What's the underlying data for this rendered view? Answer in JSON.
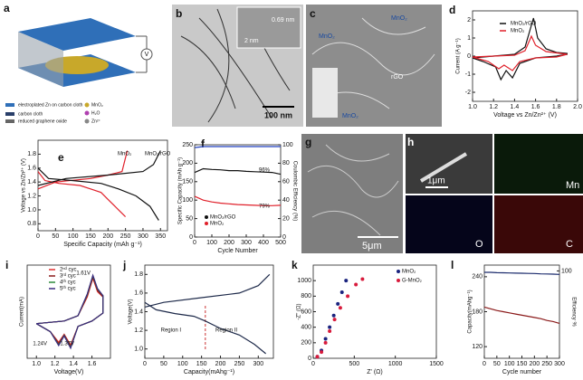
{
  "figure": {
    "a": {
      "label": "a",
      "side_label": "V",
      "legend": [
        "electroplated Zn on carbon cloth",
        "carbon cloth",
        "reduced graphene oxide",
        "MnO₂",
        "H₂O",
        "Zn²⁺"
      ]
    },
    "b": {
      "label": "b",
      "annotations": [
        "0.69 nm",
        "2 nm",
        "100 nm"
      ]
    },
    "c": {
      "label": "c",
      "annotations": [
        "MnO₂",
        "MnO₂",
        "rGO",
        "MnO₂"
      ]
    },
    "g": {
      "label": "g",
      "scale": "5μm"
    },
    "h": {
      "label": "h",
      "scale": "1μm",
      "maps": [
        "Mn",
        "O",
        "C"
      ]
    }
  },
  "chart_data": [
    {
      "type": "line",
      "label": "d",
      "xlabel": "Voltage vs Zn/Zn²⁺ (V)",
      "ylabel": "Current (A g⁻¹)",
      "xlim": [
        1.0,
        2.0
      ],
      "ylim": [
        -2.5,
        2.5
      ],
      "xticks": [
        {
          "value": 1,
          "label": "1.0"
        },
        1.2,
        1.4,
        1.6,
        1.8,
        {
          "value": 2,
          "label": "2.0"
        }
      ],
      "yticks": [
        -2,
        -1,
        0,
        1,
        2
      ],
      "series": [
        {
          "name": "MnO₂/rGO",
          "color": "#111111",
          "x": [
            1.0,
            1.4,
            1.5,
            1.55,
            1.58,
            1.62,
            1.7,
            1.8,
            1.9,
            1.9,
            1.8,
            1.6,
            1.45,
            1.38,
            1.32,
            1.27,
            1.22,
            1.1,
            1.0
          ],
          "values": [
            -0.1,
            0.1,
            0.5,
            1.5,
            2.1,
            1.0,
            0.4,
            0.2,
            0.15,
            0.1,
            0.0,
            -0.1,
            -0.4,
            -1.2,
            -0.8,
            -1.3,
            -0.6,
            -0.3,
            -0.1
          ]
        },
        {
          "name": "MnO₂",
          "color": "#e0202a",
          "x": [
            1.0,
            1.4,
            1.5,
            1.56,
            1.6,
            1.7,
            1.9,
            1.8,
            1.6,
            1.45,
            1.38,
            1.3,
            1.25,
            1.15,
            1.0
          ],
          "values": [
            -0.05,
            0.05,
            0.3,
            1.1,
            0.6,
            0.25,
            0.1,
            -0.05,
            -0.1,
            -0.3,
            -0.8,
            -0.5,
            -0.7,
            -0.3,
            -0.05
          ]
        }
      ]
    },
    {
      "type": "line",
      "label": "e",
      "xlabel": "Specific Capacity (mAh g⁻¹)",
      "ylabel": "Voltage vs Zn/Zn²⁺ (V)",
      "xlim": [
        0,
        370
      ],
      "ylim": [
        0.7,
        2.0
      ],
      "xticks": [
        0,
        50,
        100,
        150,
        200,
        250,
        300,
        350
      ],
      "yticks": [
        0.8,
        {
          "value": 1,
          "label": "1.0"
        },
        1.2,
        1.4,
        1.6,
        1.8
      ],
      "series": [
        {
          "name": "MnO₂",
          "color": "#e0202a",
          "x": [
            0,
            20,
            60,
            120,
            150,
            180,
            200,
            230,
            250,
            null,
            0,
            50,
            150,
            200,
            240,
            255
          ],
          "values": [
            1.55,
            1.42,
            1.38,
            1.35,
            1.3,
            1.25,
            1.15,
            1.0,
            0.9,
            null,
            1.3,
            1.4,
            1.45,
            1.5,
            1.55,
            1.85
          ]
        },
        {
          "name": "MnO₂/rGO",
          "color": "#111111",
          "x": [
            0,
            30,
            100,
            180,
            230,
            280,
            320,
            345,
            null,
            0,
            80,
            200,
            300,
            330,
            350
          ],
          "values": [
            1.6,
            1.45,
            1.42,
            1.38,
            1.3,
            1.2,
            1.05,
            0.85,
            null,
            1.35,
            1.45,
            1.5,
            1.55,
            1.65,
            1.85
          ]
        }
      ]
    },
    {
      "type": "line",
      "label": "f",
      "xlabel": "Cycle Number",
      "ylabel": "Specific Capacity (mAh g⁻¹)",
      "y2label": "Coulombic Efficiency (%)",
      "xlim": [
        0,
        500
      ],
      "ylim": [
        0,
        250
      ],
      "y2lim": [
        0,
        100
      ],
      "xticks": [
        0,
        100,
        200,
        300,
        400,
        500
      ],
      "yticks": [
        0,
        50,
        100,
        150,
        200,
        250
      ],
      "y2ticks": [
        0,
        20,
        40,
        60,
        80,
        100
      ],
      "annotations": [
        "96%",
        "79%"
      ],
      "series": [
        {
          "name": "MnO₂/rGO",
          "color": "#111111",
          "x": [
            1,
            50,
            100,
            150,
            200,
            250,
            300,
            350,
            400,
            450,
            500
          ],
          "values": [
            175,
            185,
            183,
            182,
            180,
            180,
            178,
            177,
            176,
            175,
            170
          ]
        },
        {
          "name": "MnO₂",
          "color": "#e0202a",
          "x": [
            1,
            50,
            100,
            150,
            200,
            250,
            300,
            350,
            400,
            450,
            500
          ],
          "values": [
            110,
            100,
            95,
            92,
            90,
            88,
            87,
            86,
            85,
            85,
            86
          ]
        },
        {
          "color": "#2040c0",
          "axis": "y2",
          "x": [
            1,
            50,
            100,
            150,
            200,
            250,
            300,
            350,
            400,
            450,
            500
          ],
          "values": [
            97,
            98,
            98,
            98,
            98,
            98,
            98,
            98,
            98,
            98,
            98
          ]
        }
      ]
    },
    {
      "type": "line",
      "label": "i",
      "xlabel": "Voltage(V)",
      "ylabel": "Current(mA)",
      "xlim": [
        0.9,
        1.8
      ],
      "ylim": [
        -1.5,
        2.0
      ],
      "xticks": [
        {
          "value": 1,
          "label": "1.0"
        },
        1.2,
        1.4,
        1.6
      ],
      "annotations": [
        "1.61V",
        "1.24V",
        "1.37V"
      ],
      "series": [
        {
          "name": "2ⁿᵈ cyc",
          "color": "#e03030",
          "x": [
            1.0,
            1.3,
            1.45,
            1.55,
            1.61,
            1.66,
            1.72,
            1.72,
            1.6,
            1.45,
            1.37,
            1.3,
            1.24,
            1.15,
            1.0
          ],
          "values": [
            -0.2,
            -0.1,
            0.1,
            0.8,
            1.5,
            1.0,
            0.8,
            0.2,
            -0.1,
            -0.3,
            -1.0,
            -0.6,
            -0.9,
            -0.5,
            -0.2
          ]
        },
        {
          "name": "3ʳᵈ cyc",
          "color": "#8b1a1a",
          "x": [
            1.0,
            1.3,
            1.45,
            1.55,
            1.61,
            1.66,
            1.72,
            1.72,
            1.6,
            1.45,
            1.37,
            1.3,
            1.24,
            1.15,
            1.0
          ],
          "values": [
            -0.2,
            -0.1,
            0.1,
            0.85,
            1.55,
            1.05,
            0.8,
            0.2,
            -0.1,
            -0.3,
            -1.05,
            -0.62,
            -0.95,
            -0.5,
            -0.2
          ]
        },
        {
          "name": "4ᵗʰ cyc",
          "color": "#2e8b3a",
          "x": [
            1.0,
            1.3,
            1.45,
            1.55,
            1.61,
            1.66,
            1.72,
            1.72,
            1.6,
            1.45,
            1.37,
            1.3,
            1.24,
            1.15,
            1.0
          ],
          "values": [
            -0.2,
            -0.1,
            0.1,
            0.9,
            1.6,
            1.1,
            0.85,
            0.2,
            -0.1,
            -0.3,
            -1.1,
            -0.65,
            -1.0,
            -0.5,
            -0.2
          ]
        },
        {
          "name": "5ᵗʰ cyc",
          "color": "#3a2a80",
          "x": [
            1.0,
            1.3,
            1.45,
            1.55,
            1.61,
            1.66,
            1.72,
            1.72,
            1.6,
            1.45,
            1.37,
            1.3,
            1.24,
            1.15,
            1.0
          ],
          "values": [
            -0.2,
            -0.1,
            0.1,
            0.92,
            1.62,
            1.12,
            0.85,
            0.2,
            -0.1,
            -0.3,
            -1.12,
            -0.66,
            -1.02,
            -0.5,
            -0.2
          ]
        }
      ]
    },
    {
      "type": "line",
      "label": "j",
      "xlabel": "Capacity(mAhg⁻¹)",
      "ylabel": "Voltage(V)",
      "xlim": [
        0,
        340
      ],
      "ylim": [
        0.9,
        1.9
      ],
      "xticks": [
        0,
        50,
        100,
        150,
        200,
        250,
        300
      ],
      "yticks": [
        {
          "value": 1,
          "label": "1.0"
        },
        1.2,
        1.4,
        1.6,
        1.8
      ],
      "annotations": [
        "Region I",
        "Region II"
      ],
      "divider_x": 160,
      "series": [
        {
          "color": "#1e2a4a",
          "x": [
            0,
            30,
            80,
            130,
            160,
            200,
            250,
            290,
            320,
            null,
            0,
            50,
            150,
            250,
            300,
            330
          ],
          "values": [
            1.5,
            1.42,
            1.38,
            1.35,
            1.3,
            1.22,
            1.15,
            1.05,
            0.95,
            null,
            1.45,
            1.5,
            1.55,
            1.6,
            1.68,
            1.8
          ]
        }
      ]
    },
    {
      "type": "scatter",
      "label": "k",
      "xlabel": "Z' (Ω)",
      "ylabel": "-Z'' (Ω)",
      "xlim": [
        0,
        1500
      ],
      "ylim": [
        0,
        1200
      ],
      "xticks": [
        0,
        500,
        1000,
        1500
      ],
      "yticks": [
        0,
        200,
        400,
        600,
        800,
        1000
      ],
      "series": [
        {
          "name": "MnO₂",
          "color": "#1a237e",
          "x": [
            50,
            100,
            150,
            200,
            250,
            300,
            350,
            400
          ],
          "values": [
            20,
            100,
            250,
            400,
            550,
            700,
            850,
            1000
          ]
        },
        {
          "name": "G-MnO₂",
          "color": "#d81b3c",
          "x": [
            50,
            100,
            150,
            200,
            260,
            330,
            420,
            520,
            600
          ],
          "values": [
            20,
            80,
            200,
            350,
            500,
            650,
            800,
            950,
            1020
          ]
        }
      ]
    },
    {
      "type": "line",
      "label": "l",
      "xlabel": "Cycle number",
      "ylabel": "Capacity(mAhg⁻¹)",
      "y2label": "Efficiency %",
      "xlim": [
        0,
        300
      ],
      "ylim": [
        100,
        260
      ],
      "y2lim": [
        40,
        104
      ],
      "xticks": [
        0,
        50,
        100,
        150,
        200,
        250,
        300
      ],
      "yticks": [
        120,
        180,
        240
      ],
      "y2ticks": [
        100
      ],
      "series": [
        {
          "color": "#8b1a1a",
          "x": [
            0,
            25,
            50,
            75,
            100,
            125,
            150,
            175,
            200,
            225,
            250,
            275,
            300
          ],
          "values": [
            188,
            185,
            182,
            180,
            178,
            176,
            174,
            172,
            170,
            168,
            165,
            163,
            160
          ]
        },
        {
          "color": "#1a2a6c",
          "axis": "y2",
          "x": [
            0,
            25,
            50,
            75,
            100,
            125,
            150,
            175,
            200,
            225,
            250,
            275,
            300
          ],
          "values": [
            99,
            99,
            98.8,
            98.7,
            98.6,
            98.5,
            98.4,
            98.3,
            98.2,
            98,
            97.9,
            97.8,
            97.6
          ]
        }
      ]
    }
  ]
}
